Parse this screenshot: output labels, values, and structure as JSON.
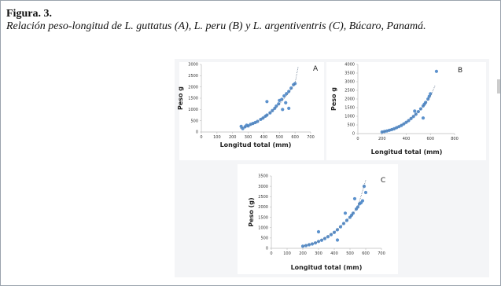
{
  "figure": {
    "label": "Figura. 3.",
    "caption": "Relación peso-longitud de L. guttatus (A), L. peru (B) y L. argentiventris (C), Búcaro, Panamá."
  },
  "chart_data": [
    {
      "type": "scatter",
      "annotation": "A",
      "xlabel": "Longitud total (mm)",
      "ylabel": "Peso g",
      "xlim": [
        0,
        700
      ],
      "xticks": [
        0,
        100,
        200,
        300,
        400,
        500,
        600,
        700
      ],
      "ylim": [
        0,
        3000
      ],
      "yticks": [
        0,
        500,
        1000,
        1500,
        2000,
        2500,
        3000
      ],
      "series": [
        {
          "color": "#4a86c8",
          "x": [
            255,
            265,
            280,
            290,
            300,
            315,
            330,
            345,
            360,
            380,
            395,
            410,
            420,
            440,
            455,
            470,
            480,
            495,
            500,
            515,
            520,
            530,
            545,
            560,
            575,
            590,
            600,
            540,
            560,
            420
          ],
          "values": [
            250,
            150,
            230,
            300,
            270,
            340,
            380,
            420,
            470,
            560,
            620,
            700,
            1350,
            850,
            950,
            1050,
            1150,
            1250,
            1400,
            1450,
            1000,
            1600,
            1700,
            1800,
            1950,
            2100,
            2150,
            1300,
            1050,
            750
          ]
        },
        {
          "color": "#5c6f88",
          "dotted": true,
          "x": [
            250,
            300,
            350,
            400,
            450,
            500,
            550,
            600,
            620
          ],
          "values": [
            160,
            270,
            430,
            640,
            910,
            1250,
            1660,
            2160,
            2900
          ]
        }
      ]
    },
    {
      "type": "scatter",
      "annotation": "B",
      "xlabel": "Longitud total (mm)",
      "ylabel": "Peso g",
      "xlim": [
        0,
        800
      ],
      "xticks": [
        0,
        200,
        400,
        600,
        800
      ],
      "ylim": [
        0,
        4000
      ],
      "yticks": [
        0,
        500,
        1000,
        1500,
        2000,
        2500,
        3000,
        3500,
        4000
      ],
      "series": [
        {
          "color": "#4a86c8",
          "x": [
            200,
            220,
            240,
            260,
            280,
            300,
            320,
            340,
            360,
            380,
            400,
            420,
            440,
            460,
            480,
            500,
            520,
            540,
            550,
            560,
            580,
            590,
            600,
            540,
            650,
            470
          ],
          "values": [
            90,
            120,
            150,
            190,
            230,
            280,
            340,
            400,
            470,
            560,
            650,
            750,
            870,
            990,
            1120,
            1270,
            1430,
            1600,
            1700,
            1800,
            2000,
            2150,
            2300,
            900,
            3600,
            1300
          ]
        },
        {
          "color": "#5c6f88",
          "dotted": true,
          "x": [
            200,
            300,
            400,
            500,
            550,
            600,
            640
          ],
          "values": [
            80,
            270,
            640,
            1250,
            1660,
            2160,
            2800
          ]
        }
      ]
    },
    {
      "type": "scatter",
      "annotation": "C",
      "xlabel": "Longitud total (mm)",
      "ylabel": "Peso (g)",
      "xlim": [
        0,
        700
      ],
      "xticks": [
        0,
        100,
        200,
        300,
        400,
        500,
        600,
        700
      ],
      "ylim": [
        0,
        3500
      ],
      "yticks": [
        0,
        500,
        1000,
        1500,
        2000,
        2500,
        3000,
        3500
      ],
      "series": [
        {
          "color": "#4a86c8",
          "x": [
            200,
            220,
            240,
            260,
            280,
            300,
            320,
            340,
            360,
            380,
            400,
            420,
            440,
            460,
            480,
            500,
            510,
            520,
            540,
            550,
            560,
            570,
            580,
            590,
            600,
            300,
            420,
            470,
            530
          ],
          "values": [
            100,
            130,
            170,
            210,
            260,
            330,
            390,
            470,
            560,
            660,
            770,
            900,
            1040,
            1200,
            1350,
            1500,
            1600,
            1700,
            1900,
            2000,
            2150,
            2200,
            2300,
            3000,
            2700,
            800,
            400,
            1700,
            2400
          ]
        },
        {
          "color": "#5c6f88",
          "dotted": true,
          "x": [
            200,
            300,
            400,
            500,
            550,
            600
          ],
          "values": [
            96,
            324,
            768,
            1500,
            2000,
            3300
          ]
        }
      ]
    }
  ]
}
